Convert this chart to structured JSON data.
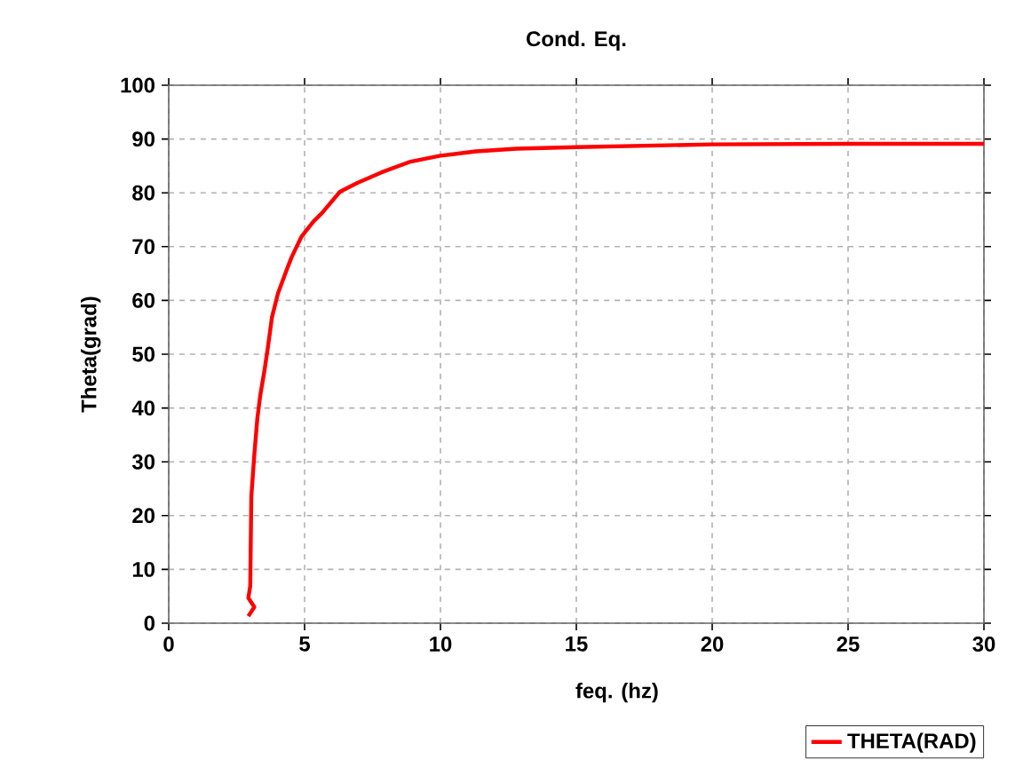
{
  "chart_data": {
    "type": "line",
    "title": "Cond. Eq.",
    "xlabel": "feq. (hz)",
    "ylabel": "Theta(grad)",
    "xlim": [
      0,
      30
    ],
    "ylim": [
      0,
      100
    ],
    "xticks": [
      0,
      5,
      10,
      15,
      20,
      25,
      30
    ],
    "yticks": [
      0,
      10,
      20,
      30,
      40,
      50,
      60,
      70,
      80,
      90,
      100
    ],
    "grid": true,
    "legend": "bottom right",
    "marker": "none",
    "line_style": "solid",
    "series": [
      {
        "name": "THETA(RAD)",
        "color": "#ff0000",
        "x": [
          2.93,
          3.15,
          2.93,
          3.0,
          3.04,
          3.15,
          3.26,
          3.37,
          3.52,
          3.65,
          3.8,
          4.02,
          4.35,
          4.52,
          4.89,
          5.33,
          5.65,
          6.3,
          6.96,
          7.83,
          8.9,
          10,
          11.3,
          12.8,
          15,
          20,
          25,
          30
        ],
        "values": [
          1.3,
          3.0,
          4.7,
          6.9,
          23.6,
          31.3,
          38,
          42.4,
          46.9,
          51.3,
          56.9,
          61.3,
          65.8,
          68,
          71.9,
          74.7,
          76.3,
          80.2,
          81.9,
          83.8,
          85.8,
          86.9,
          87.7,
          88.2,
          88.5,
          89,
          89.1,
          89.1
        ]
      }
    ]
  }
}
